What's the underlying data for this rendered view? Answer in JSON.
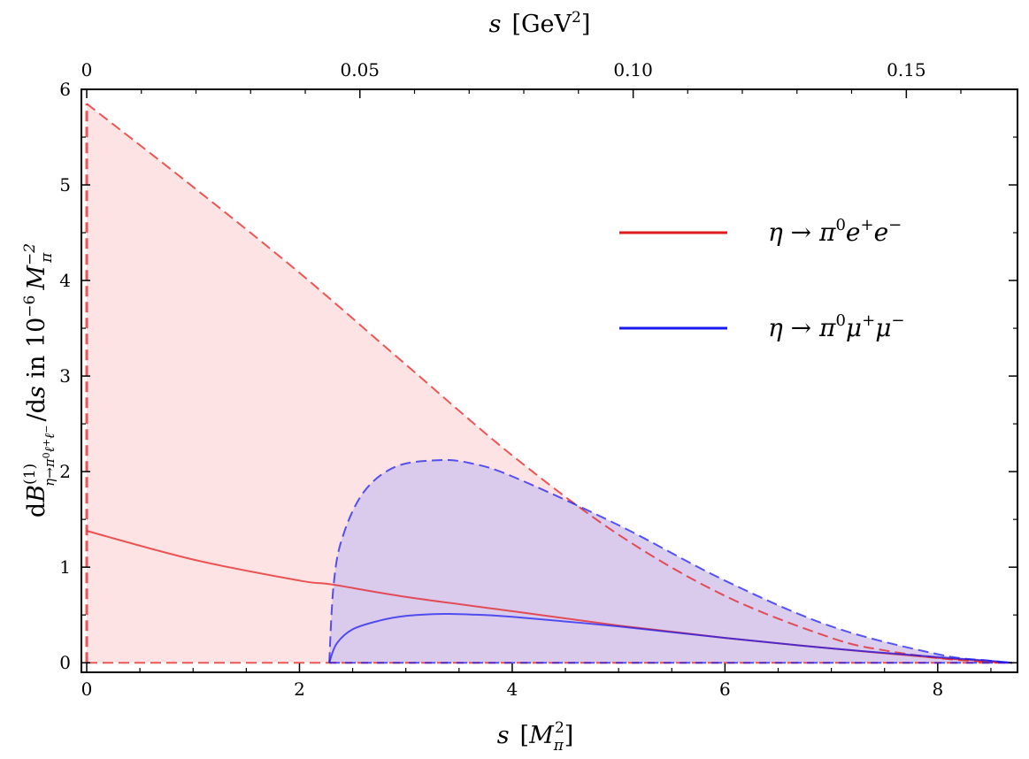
{
  "chart_data": {
    "type": "area",
    "title": "",
    "xlabel": "s  [M_π^2]",
    "x2label": "s  [GeV^2]",
    "ylabel": "dB^(1)_{η→π0ℓ+ℓ−}/ds in 10^−6 M_π^−2",
    "xlim": [
      -0.05,
      8.75
    ],
    "ylim": [
      -0.1,
      6.0
    ],
    "x_ticks": [
      0,
      2,
      4,
      6,
      8
    ],
    "x_tick_labels": [
      "0",
      "2",
      "4",
      "6",
      "8"
    ],
    "y_ticks": [
      0,
      1,
      2,
      3,
      4,
      5,
      6
    ],
    "y_tick_labels": [
      "0",
      "1",
      "2",
      "3",
      "4",
      "5",
      "6"
    ],
    "x2_ticks_M": [
      0,
      2.568,
      5.137,
      7.705
    ],
    "x2_tick_labels": [
      "0",
      "0.05",
      "0.10",
      "0.15"
    ],
    "grid": false,
    "legend_position": "center-right",
    "series": [
      {
        "name": "η → π0e+e−",
        "color": "#e31a1c",
        "band_fill": "#fde3e3",
        "central": {
          "x": [
            0,
            1,
            2,
            2.3,
            3,
            4,
            5,
            6,
            7,
            8,
            8.3,
            8.5,
            8.7
          ],
          "y": [
            1.38,
            1.08,
            0.86,
            0.82,
            0.69,
            0.54,
            0.39,
            0.26,
            0.15,
            0.05,
            0.03,
            0.01,
            0.0
          ]
        },
        "upper": {
          "x": [
            0,
            1,
            2,
            3,
            4,
            5,
            6,
            7,
            7.5,
            8,
            8.3,
            8.5,
            8.7
          ],
          "y": [
            5.85,
            4.98,
            4.08,
            3.12,
            2.17,
            1.34,
            0.7,
            0.26,
            0.13,
            0.05,
            0.02,
            0.01,
            0.0
          ]
        },
        "lower_y": 0
      },
      {
        "name": "η → π0μ+μ−",
        "color": "#1a1aee",
        "band_fill": "#d6c8ec",
        "central": {
          "x": [
            2.28,
            2.35,
            2.5,
            2.75,
            3.0,
            3.3,
            3.6,
            4,
            5,
            6,
            7,
            8,
            8.5,
            8.7
          ],
          "y": [
            0.0,
            0.2,
            0.35,
            0.44,
            0.49,
            0.51,
            0.505,
            0.48,
            0.38,
            0.26,
            0.15,
            0.06,
            0.02,
            0.0
          ]
        },
        "upper": {
          "x": [
            2.28,
            2.32,
            2.4,
            2.6,
            2.9,
            3.3,
            3.6,
            4,
            5,
            6,
            7,
            8,
            8.5,
            8.7
          ],
          "y": [
            0.0,
            0.8,
            1.3,
            1.78,
            2.05,
            2.12,
            2.09,
            1.95,
            1.44,
            0.86,
            0.38,
            0.09,
            0.02,
            0.0
          ]
        },
        "lower_y": 0
      }
    ]
  }
}
